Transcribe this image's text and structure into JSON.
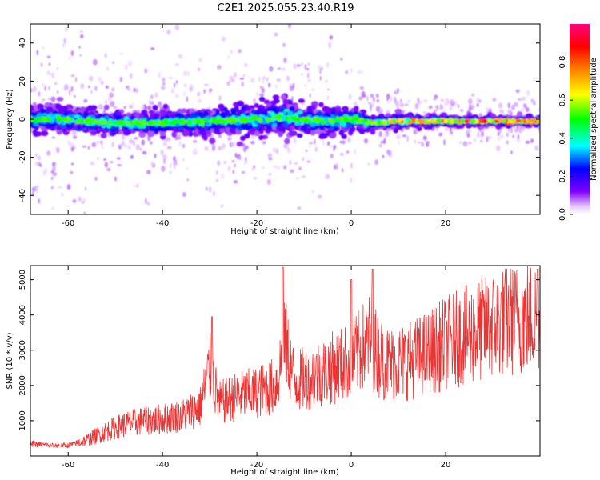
{
  "title": "C2E1.2025.055.23.40.R19",
  "chart_data": [
    {
      "type": "heatmap",
      "xlabel": "Height of straight line (km)",
      "ylabel": "Frequency (Hz)",
      "xlim": [
        -68,
        40
      ],
      "ylim": [
        -50,
        50
      ],
      "xticks": [
        -60,
        -40,
        -20,
        0,
        20
      ],
      "yticks": [
        -40,
        -20,
        0,
        20,
        40
      ],
      "grid": false,
      "colorbar": {
        "label": "Normalized spectral amplitude",
        "range": [
          0.0,
          1.0
        ],
        "ticks": [
          "0.0",
          "0.2",
          "0.4",
          "0.6",
          "0.8"
        ],
        "tick_values": [
          0.0,
          0.2,
          0.4,
          0.6,
          0.8
        ],
        "colors": [
          "#ffffff",
          "#8000ff",
          "#0000ff",
          "#00ffff",
          "#00ff00",
          "#ffff00",
          "#ff8000",
          "#ff0000",
          "#ff0080"
        ]
      },
      "trend": {
        "x": [
          -68,
          -60,
          -50,
          -40,
          -30,
          -20,
          -15,
          -10,
          -5,
          0,
          5,
          10,
          20,
          30,
          40
        ],
        "center_hz": [
          0,
          0,
          -2,
          -2,
          -1,
          0,
          1,
          0,
          -1,
          0,
          -2,
          -1,
          -1,
          -1,
          -1
        ],
        "spread_hz": [
          6,
          6,
          5,
          5,
          6,
          7,
          8,
          7,
          6,
          5,
          3,
          3,
          2,
          2,
          2
        ],
        "peak_amplitude": [
          0.3,
          0.35,
          0.45,
          0.45,
          0.45,
          0.4,
          0.45,
          0.4,
          0.35,
          0.5,
          0.6,
          0.8,
          0.85,
          0.9,
          0.85
        ]
      }
    },
    {
      "type": "line",
      "xlabel": "Height of straight line (km)",
      "ylabel": "SNR (10 * v/v)",
      "xlim": [
        -68,
        40
      ],
      "ylim": [
        0,
        5400
      ],
      "xticks": [
        -60,
        -40,
        -20,
        0,
        20
      ],
      "yticks": [
        1000,
        2000,
        3000,
        4000,
        5000
      ],
      "grid": false,
      "color": "#ee3333",
      "series": [
        {
          "x": [
            -68,
            -64,
            -60,
            -56,
            -52,
            -48,
            -44,
            -40,
            -36,
            -32,
            -30,
            -28,
            -24,
            -20,
            -16,
            -14,
            -12,
            -8,
            -4,
            0,
            2,
            4,
            6,
            8,
            12,
            16,
            20,
            24,
            28,
            32,
            36,
            40
          ],
          "values": [
            350,
            300,
            300,
            450,
            700,
            900,
            1000,
            1050,
            1150,
            1400,
            2500,
            1500,
            1700,
            1800,
            2000,
            3200,
            2100,
            2300,
            2500,
            2700,
            3000,
            3300,
            2800,
            2600,
            2700,
            2900,
            3200,
            3400,
            3600,
            3800,
            3900,
            4000
          ]
        }
      ],
      "peaks": [
        {
          "x": -29.5,
          "y": 3950
        },
        {
          "x": -14.5,
          "y": 5350
        },
        {
          "x": 0,
          "y": 5000
        },
        {
          "x": 4.5,
          "y": 5300
        },
        {
          "x": 39.5,
          "y": 5300
        }
      ]
    }
  ]
}
